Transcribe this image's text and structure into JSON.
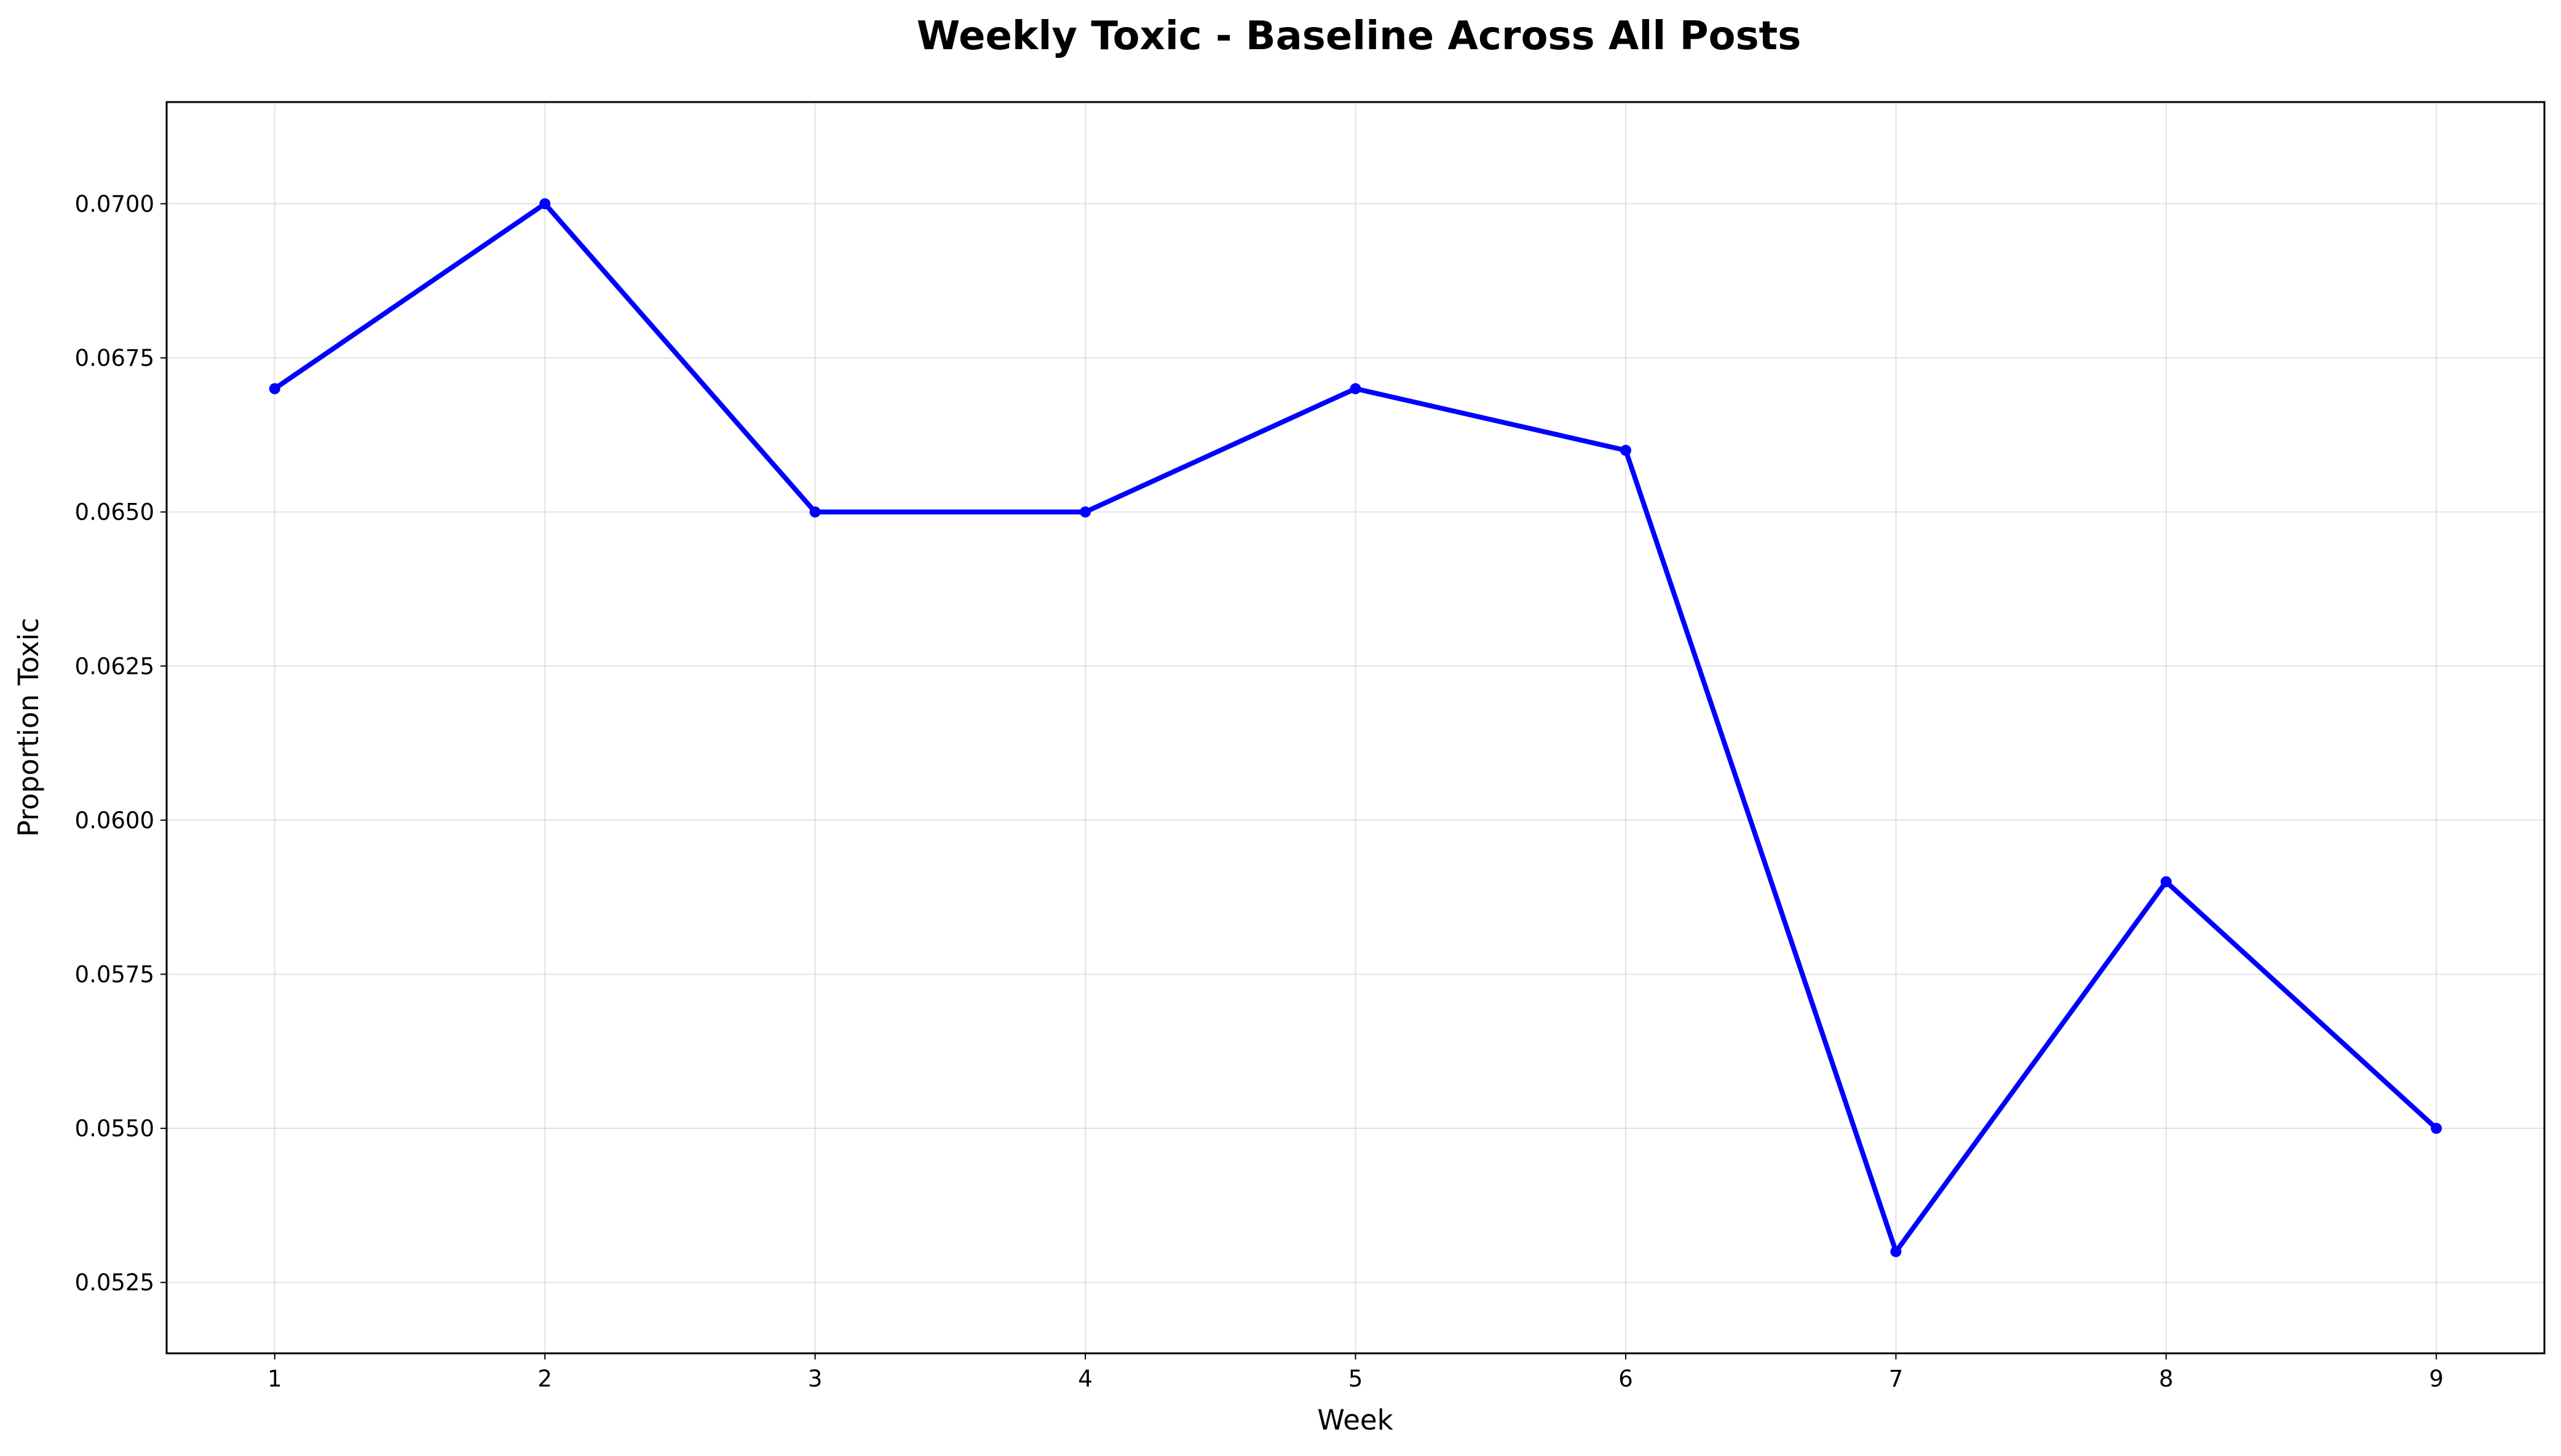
{
  "chart_data": {
    "type": "line",
    "title": "Weekly Toxic - Baseline Across All Posts",
    "xlabel": "Week",
    "ylabel": "Proportion Toxic",
    "x": [
      1,
      2,
      3,
      4,
      5,
      6,
      7,
      8,
      9
    ],
    "xticks": [
      "1",
      "2",
      "3",
      "4",
      "5",
      "6",
      "7",
      "8",
      "9"
    ],
    "yticks": [
      "0.0525",
      "0.0550",
      "0.0575",
      "0.0600",
      "0.0625",
      "0.0650",
      "0.0675",
      "0.0700"
    ],
    "xlim": [
      0.6,
      9.4
    ],
    "ylim": [
      0.05135,
      0.07165
    ],
    "grid": true,
    "series": [
      {
        "values": [
          0.067,
          0.07,
          0.065,
          0.065,
          0.067,
          0.066,
          0.053,
          0.059,
          0.055
        ],
        "color": "#0000ff",
        "marker": "circle"
      }
    ]
  }
}
